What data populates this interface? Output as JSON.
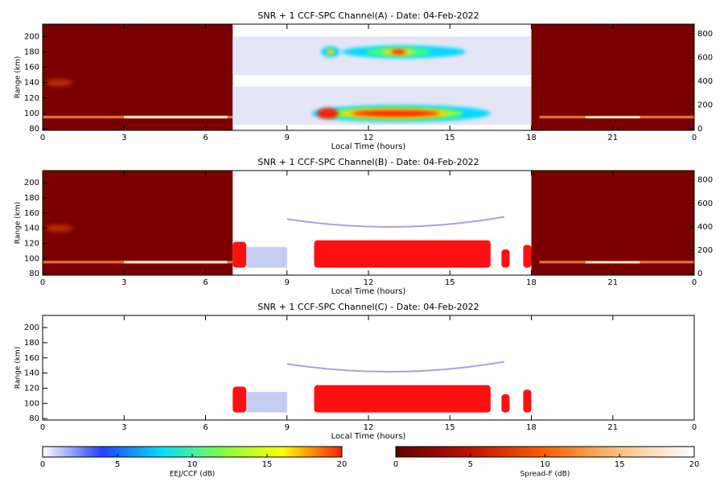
{
  "chart_data": [
    {
      "type": "heatmap",
      "title": "SNR + 1 CCF-SPC Channel(A) - Date: 04-Feb-2022",
      "x_label": "Local Time (hours)",
      "y_label": "Range (km)",
      "xlim": [
        0,
        24
      ],
      "xticks": [
        0,
        3,
        6,
        9,
        12,
        15,
        18,
        21,
        {
          "value": 24,
          "label": "0"
        }
      ],
      "ylim": [
        78,
        216
      ],
      "yticks": [
        80,
        100,
        120,
        140,
        160,
        180,
        200
      ],
      "y2lim": [
        -13,
        880
      ],
      "y2ticks": [
        0,
        200,
        400,
        600,
        800
      ]
    },
    {
      "type": "heatmap",
      "title": "SNR + 1 CCF-SPC Channel(B) - Date: 04-Feb-2022",
      "x_label": "Local Time (hours)",
      "y_label": "Range (km)",
      "xlim": [
        0,
        24
      ],
      "xticks": [
        0,
        3,
        6,
        9,
        12,
        15,
        18,
        21,
        {
          "value": 24,
          "label": "0"
        }
      ],
      "ylim": [
        78,
        216
      ],
      "yticks": [
        80,
        100,
        120,
        140,
        160,
        180,
        200
      ],
      "y2lim": [
        -13,
        880
      ],
      "y2ticks": [
        0,
        200,
        400,
        600,
        800
      ]
    },
    {
      "type": "heatmap",
      "title": "SNR + 1 CCF-SPC Channel(C) - Date: 04-Feb-2022",
      "x_label": "Local Time (hours)",
      "y_label": "Range (km)",
      "xlim": [
        0,
        24
      ],
      "xticks": [
        0,
        3,
        6,
        9,
        12,
        15,
        18,
        21,
        {
          "value": 24,
          "label": "0"
        }
      ],
      "ylim": [
        78,
        216
      ],
      "yticks": [
        80,
        100,
        120,
        140,
        160,
        180,
        200
      ]
    },
    {
      "type": "colorbar",
      "x_label": "EEJ/CCF (dB)",
      "xlim": [
        0,
        20
      ],
      "xticks": [
        0,
        5,
        10,
        15,
        20
      ],
      "colors": [
        "#ffffff",
        "#2040ff",
        "#00e0ff",
        "#80ff40",
        "#ffff00",
        "#ff2000"
      ]
    },
    {
      "type": "colorbar",
      "x_label": "Spread-F (dB)",
      "xlim": [
        0,
        20
      ],
      "xticks": [
        0,
        5,
        10,
        15,
        20
      ],
      "colors": [
        "#600000",
        "#c01000",
        "#ff6000",
        "#ffc080",
        "#ffffff"
      ]
    }
  ]
}
